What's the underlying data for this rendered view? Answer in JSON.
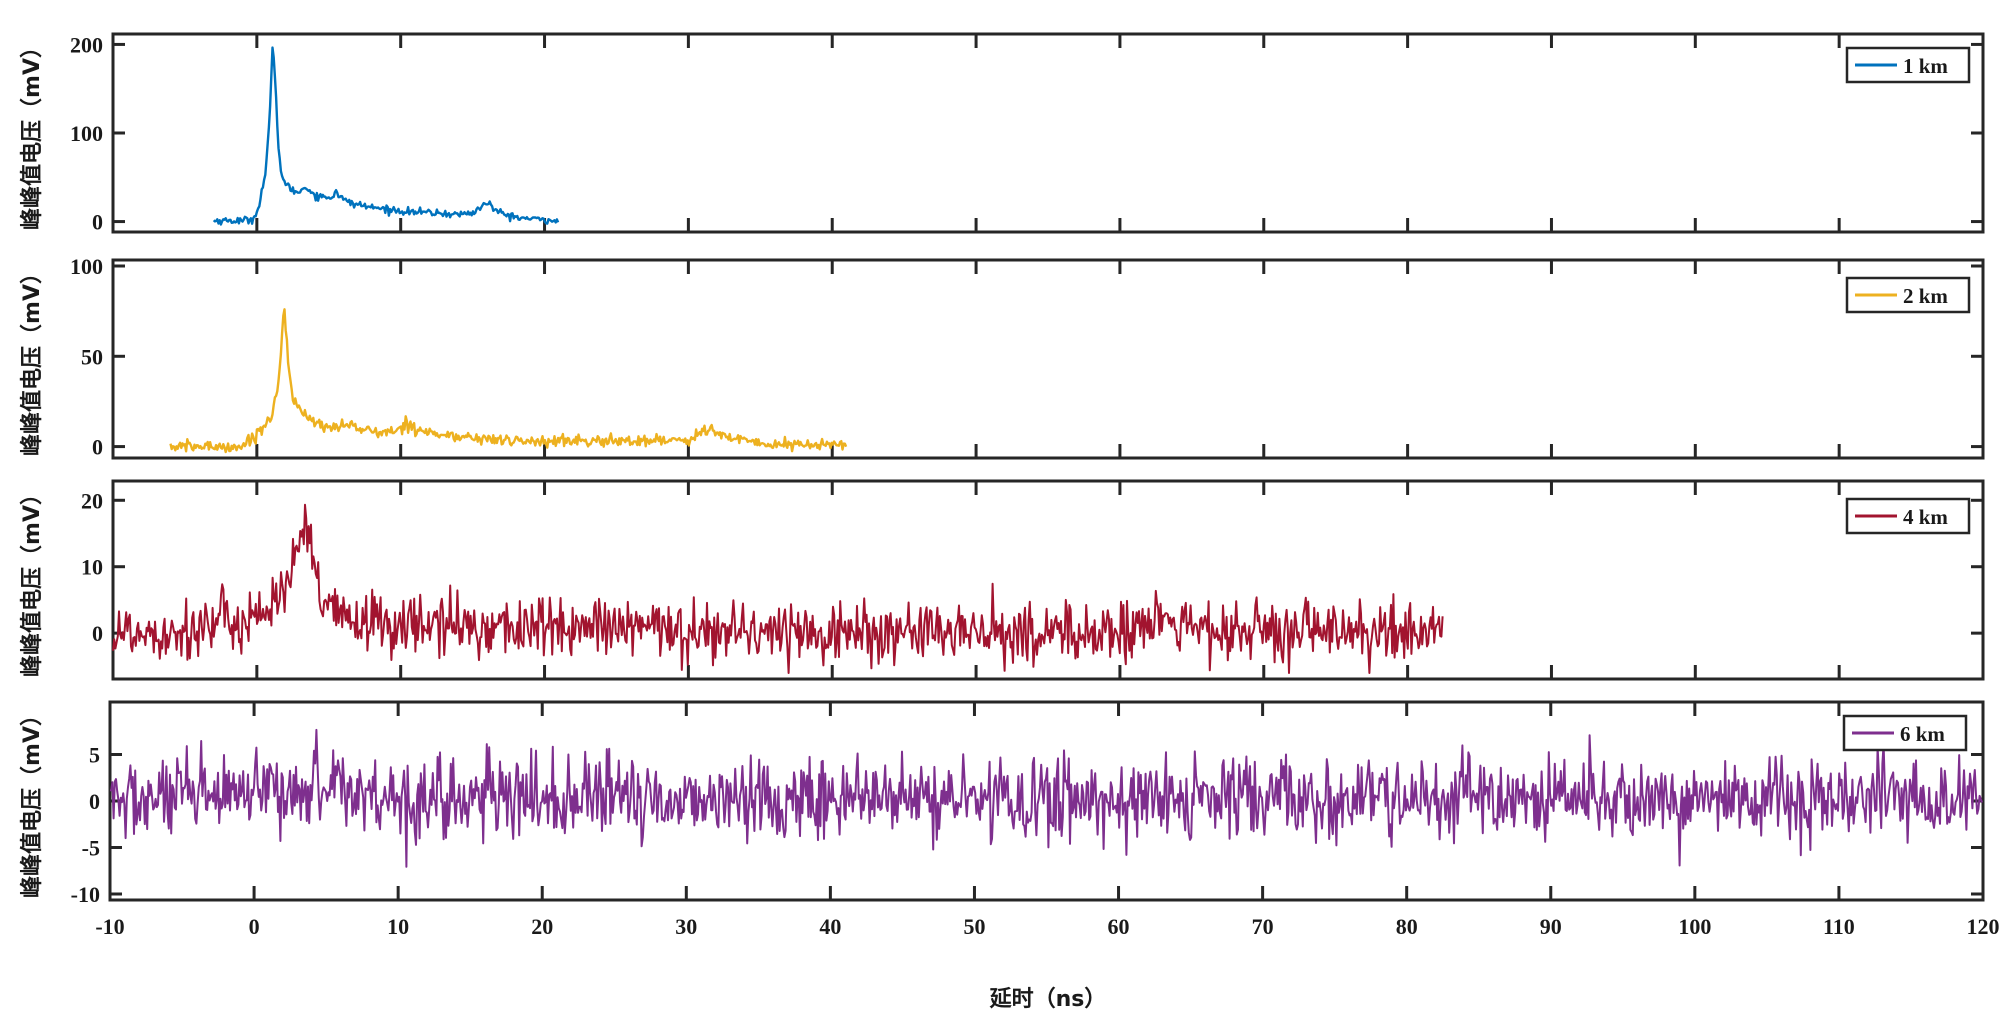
{
  "chart_data": [
    {
      "type": "line",
      "ylabel": "峰峰值电压（mV）",
      "xlim": [
        -10,
        120
      ],
      "ylim": [
        -5,
        205
      ],
      "yticks": [
        {
          "v": 0,
          "label": "0"
        },
        {
          "v": 100,
          "label": "100"
        },
        {
          "v": 200,
          "label": "200"
        }
      ],
      "legend_position": "top-right",
      "series": [
        {
          "name": "1 km",
          "color": "#0072BD",
          "x_range": [
            -3,
            21
          ],
          "x": [
            -3,
            -1,
            -0.2,
            0.2,
            0.6,
            0.9,
            1.1,
            1.3,
            1.5,
            1.7,
            2,
            2.5,
            3,
            3.3,
            3.6,
            4,
            4.5,
            5.2,
            5.5,
            5.9,
            6.5,
            8,
            10,
            12,
            14,
            15,
            15.6,
            16,
            16.4,
            17,
            18,
            19,
            20,
            21
          ],
          "y": [
            1,
            1,
            3,
            22,
            55,
            120,
            200,
            150,
            85,
            55,
            42,
            35,
            33,
            40,
            36,
            30,
            28,
            27,
            35,
            26,
            21,
            16,
            12,
            10,
            8,
            10,
            16,
            23,
            15,
            9,
            5,
            3,
            2,
            1
          ],
          "noise": 2
        }
      ]
    },
    {
      "type": "line",
      "ylabel": "峰峰值电压（mV）",
      "xlim": [
        -10,
        120
      ],
      "ylim": [
        -3,
        100
      ],
      "yticks": [
        {
          "v": 0,
          "label": "0"
        },
        {
          "v": 50,
          "label": "50"
        },
        {
          "v": 100,
          "label": "100"
        }
      ],
      "legend_position": "top-right",
      "series": [
        {
          "name": "2 km",
          "color": "#EDB120",
          "x_range": [
            -6,
            41
          ],
          "x": [
            -6,
            -1,
            0,
            1,
            1.5,
            1.9,
            2.2,
            2.6,
            3.2,
            4,
            5,
            6.5,
            8,
            9.5,
            10.5,
            11.5,
            13,
            18,
            25,
            30,
            31.5,
            33,
            36,
            41
          ],
          "y": [
            0,
            0,
            7,
            16,
            35,
            78,
            45,
            25,
            18,
            13,
            11,
            12,
            8,
            8,
            13,
            9,
            6,
            3,
            3,
            4,
            10,
            4,
            1,
            1
          ],
          "noise": 1.6
        }
      ]
    },
    {
      "type": "line",
      "ylabel": "峰峰值电压（mV）",
      "xlim": [
        -10,
        120
      ],
      "ylim": [
        -6,
        22
      ],
      "yticks": [
        {
          "v": 0,
          "label": "0"
        },
        {
          "v": 10,
          "label": "10"
        },
        {
          "v": 20,
          "label": "20"
        }
      ],
      "legend_position": "top-right",
      "series": [
        {
          "name": "4 km",
          "color": "#A2142F",
          "x_range": [
            -10,
            82.5
          ],
          "x": [
            -10,
            -5,
            -1,
            1,
            2.5,
            3.4,
            3.8,
            4.4,
            5.5,
            8,
            15,
            30,
            45,
            60,
            63,
            65,
            70,
            82.5
          ],
          "y": [
            0,
            0.5,
            2,
            4,
            9,
            16,
            12,
            5,
            2.5,
            1.5,
            1,
            0.5,
            0,
            0,
            2,
            0.5,
            0,
            0
          ],
          "noise": 2.3
        }
      ]
    },
    {
      "type": "line",
      "xlabel": "延时（ns）",
      "ylabel": "峰峰值电压（mV）",
      "xlim": [
        -10,
        120
      ],
      "ylim": [
        -10,
        10
      ],
      "yticks": [
        {
          "v": -10,
          "label": "-10"
        },
        {
          "v": -5,
          "label": "-5"
        },
        {
          "v": 0,
          "label": "0"
        },
        {
          "v": 5,
          "label": "5"
        }
      ],
      "xticks": [
        -10,
        0,
        10,
        20,
        30,
        40,
        50,
        60,
        70,
        80,
        90,
        100,
        110,
        120
      ],
      "legend_position": "top-right",
      "series": [
        {
          "name": "6 km",
          "color": "#7E2F8E",
          "x_range": [
            -10,
            120
          ],
          "x": [
            -10,
            0,
            3,
            5,
            7,
            10,
            120
          ],
          "y": [
            0,
            0.5,
            1,
            2.5,
            1,
            0.3,
            0
          ],
          "noise": 2.2
        }
      ]
    }
  ]
}
